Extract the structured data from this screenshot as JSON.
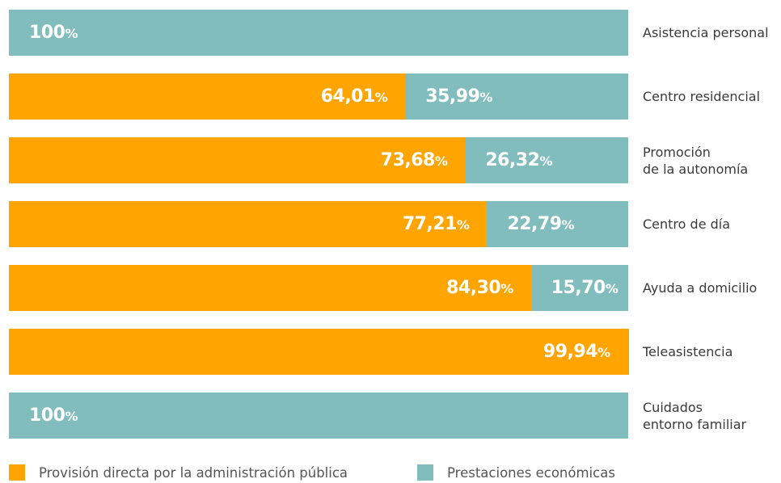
{
  "chart_data": {
    "type": "bar",
    "orientation": "horizontal",
    "stacked": true,
    "categories": [
      "Asistencia personal",
      "Centro residencial",
      "Promoción\nde la autonomía",
      "Centro de día",
      "Ayuda a domicilio",
      "Teleasistencia",
      "Cuidados\nentorno familiar"
    ],
    "xlim": [
      0,
      100
    ],
    "series": [
      {
        "name": "Provisión directa por la administración pública",
        "color": "#ffa400",
        "values": [
          0,
          64.01,
          73.68,
          77.21,
          84.3,
          99.94,
          0
        ],
        "value_labels": [
          null,
          "64,01%",
          "73,68%",
          "77,21%",
          "84,30%",
          "99,94%",
          null
        ]
      },
      {
        "name": "Prestaciones económicas",
        "color": "#81bdbd",
        "values": [
          100,
          35.99,
          26.32,
          22.79,
          15.7,
          0.06,
          100
        ],
        "value_labels": [
          "100%",
          "35,99%",
          "26,32%",
          "22,79%",
          "15,70%",
          null,
          "100%"
        ]
      }
    ],
    "legend": "bottom"
  }
}
